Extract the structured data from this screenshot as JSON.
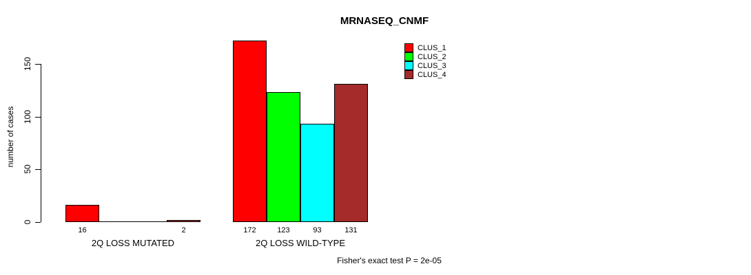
{
  "chart_data": {
    "type": "bar",
    "title": "MRNASEQ_CNMF",
    "xlabel": "",
    "ylabel": "number of cases",
    "groups": [
      "2Q LOSS MUTATED",
      "2Q LOSS WILD-TYPE"
    ],
    "series": [
      {
        "name": "CLUS_1",
        "color": "#ff0000",
        "values": [
          16,
          172
        ]
      },
      {
        "name": "CLUS_2",
        "color": "#00ff00",
        "values": [
          0,
          123
        ]
      },
      {
        "name": "CLUS_3",
        "color": "#00ffff",
        "values": [
          0,
          93
        ]
      },
      {
        "name": "CLUS_4",
        "color": "#a52a2a",
        "values": [
          2,
          131
        ]
      }
    ],
    "bar_value_labels": [
      [
        "16",
        "",
        "",
        "2"
      ],
      [
        "172",
        "123",
        "93",
        "131"
      ]
    ],
    "yticks": [
      0,
      50,
      100,
      150
    ],
    "ylim": [
      0,
      175
    ],
    "grid": false,
    "legend_position": "top-right",
    "legend_entries": [
      "CLUS_1",
      "CLUS_2",
      "CLUS_3",
      "CLUS_4"
    ],
    "annotation": "Fisher's exact test P = 2e-05",
    "bar_border_color": "#000000",
    "text_color": "#000000",
    "background_color": "#ffffff"
  }
}
